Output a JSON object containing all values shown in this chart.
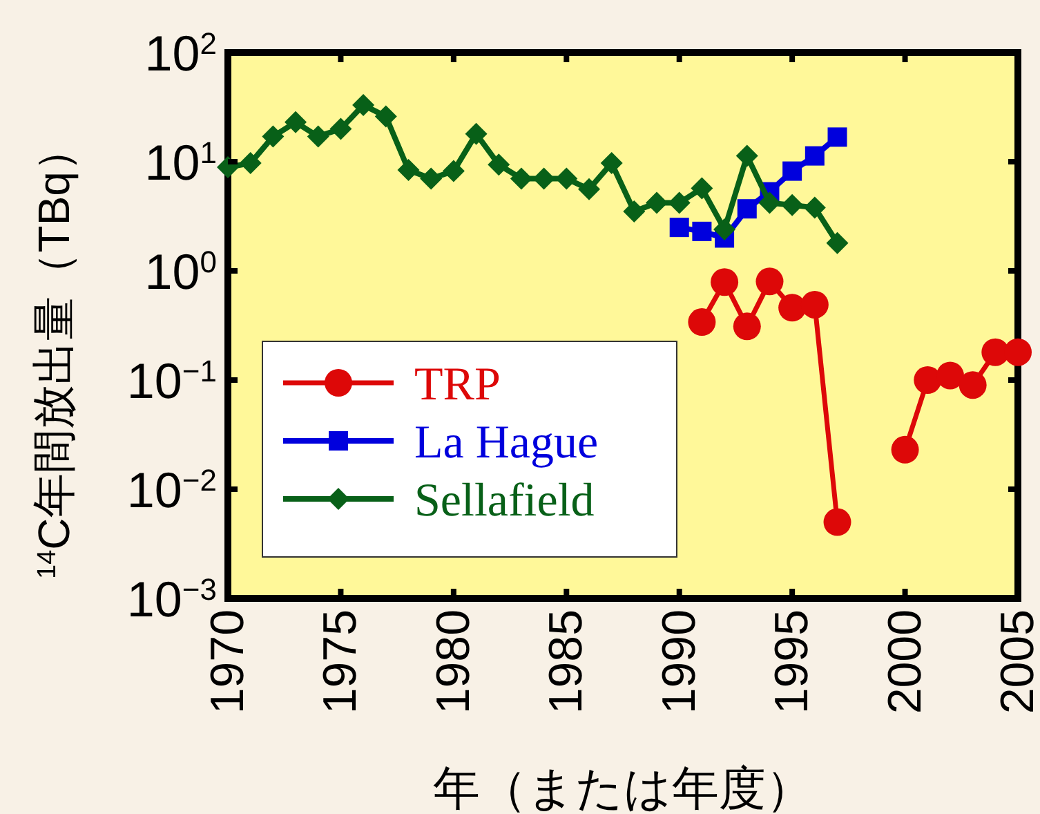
{
  "chart_data": {
    "type": "line",
    "xlabel": "年（または年度）",
    "ylabel": "$^{14}$C年間放出量（TBq）",
    "log": "y",
    "xlim": [
      1970,
      2005
    ],
    "xticks": [
      1970,
      1975,
      1980,
      1985,
      1990,
      1995,
      2000,
      2005
    ],
    "ylim": [
      0.001,
      100
    ],
    "yticks": [
      {
        "value": 0.001,
        "label": "10$^{−3}$"
      },
      {
        "value": 0.01,
        "label": "10$^{−2}$"
      },
      {
        "value": 0.1,
        "label": "10$^{−1}$"
      },
      {
        "value": 1,
        "label": "10$^{0}$"
      },
      {
        "value": 10,
        "label": "10$^{1}$"
      },
      {
        "value": 100,
        "label": "10$^{2}$"
      }
    ],
    "grid": false,
    "legend": "bottom left",
    "series": [
      {
        "name": "TRP",
        "color": "#dd0808",
        "marker": "circle",
        "x": [
          1991,
          1992,
          1993,
          1994,
          1995,
          1996,
          1997,
          1998,
          1999,
          2000,
          2001,
          2002,
          2003,
          2004,
          2005
        ],
        "values": [
          0.34,
          0.79,
          0.31,
          0.8,
          0.46,
          0.49,
          0.005,
          null,
          null,
          0.023,
          0.1,
          0.11,
          0.09,
          0.18,
          0.18
        ]
      },
      {
        "name": "La Hague",
        "color": "#0000dd",
        "marker": "square",
        "x": [
          1990,
          1991,
          1992,
          1993,
          1994,
          1995,
          1996,
          1997
        ],
        "values": [
          2.5,
          2.3,
          2.0,
          3.7,
          5.3,
          8.2,
          11.3,
          16.8
        ]
      },
      {
        "name": "Sellafield",
        "color": "#086018",
        "marker": "diamond",
        "x": [
          1970,
          1971,
          1972,
          1973,
          1974,
          1975,
          1976,
          1977,
          1978,
          1979,
          1980,
          1981,
          1982,
          1983,
          1984,
          1985,
          1986,
          1987,
          1988,
          1989,
          1990,
          1991,
          1992,
          1993,
          1994,
          1995,
          1996,
          1997
        ],
        "values": [
          8.9,
          9.7,
          17,
          23,
          17,
          20,
          33,
          26,
          8.4,
          7.0,
          8.2,
          18,
          9.4,
          7.0,
          7.0,
          7.0,
          5.6,
          9.7,
          3.5,
          4.2,
          4.2,
          5.7,
          2.4,
          11.3,
          4.2,
          4.0,
          3.8,
          1.8
        ]
      }
    ]
  }
}
